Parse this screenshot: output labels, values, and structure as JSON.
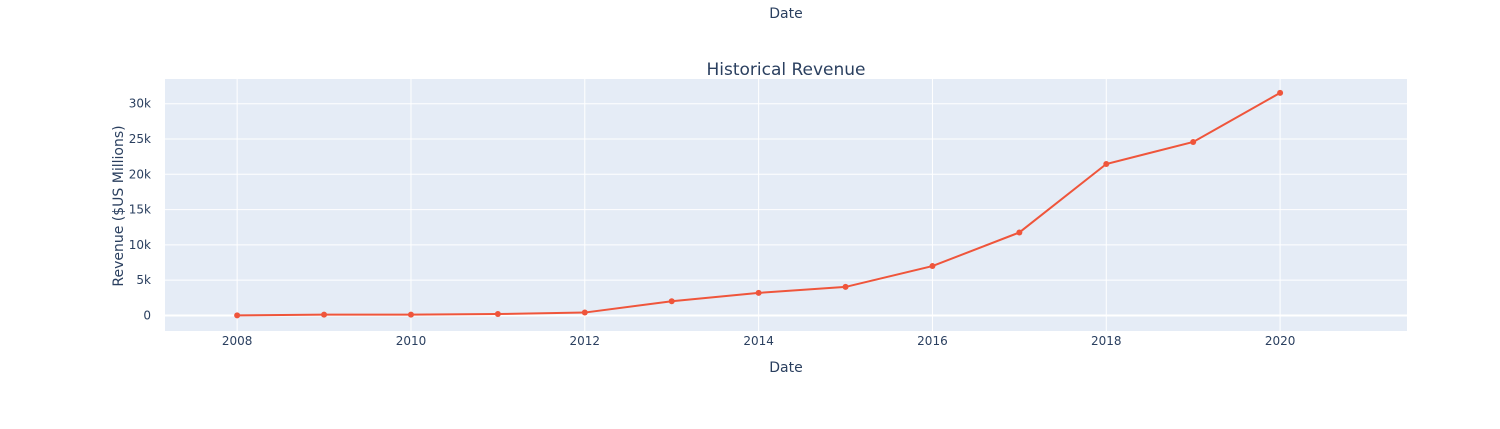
{
  "top_label": "Date",
  "colors": {
    "plot_bg": "#e5ecf6",
    "grid": "#ffffff",
    "line": "#ef553b",
    "text": "#2a3f5f"
  },
  "chart_data": {
    "type": "line",
    "title": "Historical Revenue",
    "xlabel": "Date",
    "ylabel": "Revenue ($US Millions)",
    "x": [
      2008,
      2009,
      2010,
      2011,
      2012,
      2013,
      2014,
      2015,
      2016,
      2017,
      2018,
      2019,
      2020
    ],
    "series": [
      {
        "values": [
          15,
          112,
          117,
          204,
          413,
          2013,
          3198,
          4046,
          7000,
          11759,
          21461,
          24578,
          31536
        ]
      }
    ],
    "xlim": [
      2007.17,
      2021.46
    ],
    "ylim": [
      -2200,
      33500
    ],
    "x_ticks": [
      2008,
      2010,
      2012,
      2014,
      2016,
      2018,
      2020
    ],
    "x_tick_labels": [
      "2008",
      "2010",
      "2012",
      "2014",
      "2016",
      "2018",
      "2020"
    ],
    "y_ticks": [
      0,
      5000,
      10000,
      15000,
      20000,
      25000,
      30000
    ],
    "y_tick_labels": [
      "0",
      "5k",
      "10k",
      "15k",
      "20k",
      "25k",
      "30k"
    ],
    "grid": true,
    "markers": true
  }
}
